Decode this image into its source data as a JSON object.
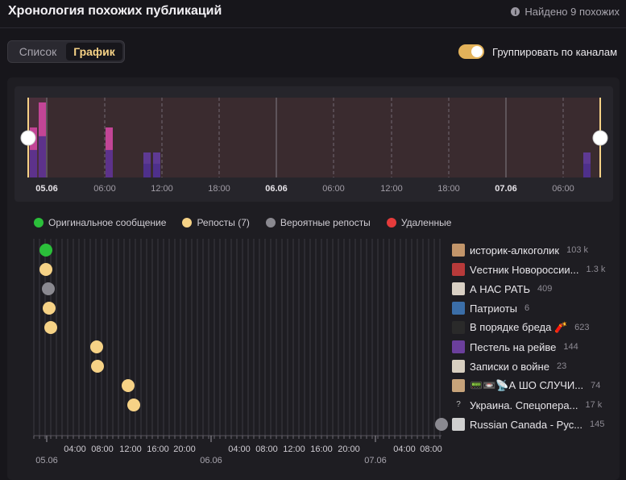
{
  "header": {
    "title": "Хронология похожих публикаций",
    "found": "Найдено 9 похожих"
  },
  "view_toggle": {
    "list_label": "Список",
    "chart_label": "График",
    "active": "chart"
  },
  "group_toggle": {
    "label": "Группировать по каналам",
    "on": true
  },
  "colors": {
    "original": "#2bbf3a",
    "repost": "#f6d286",
    "probable": "#8a8990",
    "deleted": "#e53b3b",
    "accent": "#e3b25a"
  },
  "legend": [
    {
      "label": "Оригинальное сообщение",
      "color": "#2bbf3a"
    },
    {
      "label": "Репосты (7)",
      "color": "#f6d286"
    },
    {
      "label": "Вероятные репосты",
      "color": "#8a8990"
    },
    {
      "label": "Удаленные",
      "color": "#e53b3b"
    }
  ],
  "overview": {
    "tick_labels": [
      "05.06",
      "06:00",
      "12:00",
      "18:00",
      "06.06",
      "06:00",
      "12:00",
      "18:00",
      "07.06",
      "06:00"
    ],
    "bold_ticks": [
      0,
      4,
      8
    ]
  },
  "channels": [
    {
      "name": "историк-алкоголик",
      "count": "103 k",
      "icon": "avatar-drawing-icon",
      "type": "original",
      "color": "#c2956a"
    },
    {
      "name": "Vестник Новороссии...",
      "count": "1.3 k",
      "icon": "flag-icon",
      "type": "repost",
      "color": "#b83a3a"
    },
    {
      "name": "А НАС РАТЬ",
      "count": "409",
      "icon": "avatar-person-icon",
      "type": "probable",
      "color": "#d9d0c4"
    },
    {
      "name": "Патриоты",
      "count": "6",
      "icon": "emblem-icon",
      "type": "repost",
      "color": "#3b6ea8"
    },
    {
      "name": "В порядке бреда 🧨",
      "count": "623",
      "icon": "avatar-dark-icon",
      "type": "repost",
      "color": "#2a2a2a"
    },
    {
      "name": "Пестель на рейве",
      "count": "144",
      "icon": "avatar-purple-icon",
      "type": "repost",
      "color": "#6b3f9c"
    },
    {
      "name": "Записки о войне",
      "count": "23",
      "icon": "avatar-paper-icon",
      "type": "repost",
      "color": "#d8cfc0"
    },
    {
      "name": "📟📼📡А ШО СЛУЧИ...",
      "count": "74",
      "icon": "avatar-cartoon-icon",
      "type": "repost",
      "color": "#c7a37a"
    },
    {
      "name": "Украина. Спецопера...",
      "count": "17 k",
      "icon": "unknown-icon",
      "type": "repost",
      "color": "#1e1d22"
    },
    {
      "name": "Russian Canada - Рус...",
      "count": "145",
      "icon": "avatar-group-icon",
      "type": "probable",
      "color": "#cfcfcf"
    }
  ],
  "timeline_axis": {
    "hour_labels": [
      "04:00",
      "08:00",
      "12:00",
      "16:00",
      "20:00",
      "04:00",
      "08:00",
      "12:00",
      "16:00",
      "20:00",
      "04:00",
      "08:00"
    ],
    "date_labels": [
      "05.06",
      "06.06",
      "07.06"
    ]
  },
  "chart_data": {
    "type": "bar",
    "title": "",
    "x_unit": "hours since 05.06 00:00",
    "xlim": [
      0,
      62
    ],
    "posts": [
      {
        "channel": "историк-алкоголик",
        "time": 0.5,
        "type": "original"
      },
      {
        "channel": "Vестник Новороссии...",
        "time": 0.5,
        "type": "repost"
      },
      {
        "channel": "А НАС РАТЬ",
        "time": 0.7,
        "type": "probable"
      },
      {
        "channel": "Патриоты",
        "time": 0.9,
        "type": "repost"
      },
      {
        "channel": "В порядке бреда 🧨",
        "time": 1.0,
        "type": "repost"
      },
      {
        "channel": "Пестель на рейве",
        "time": 8.8,
        "type": "repost"
      },
      {
        "channel": "Записки о войне",
        "time": 8.9,
        "type": "repost"
      },
      {
        "channel": "📟📼📡А ШО СЛУЧИ...",
        "time": 13.3,
        "type": "repost"
      },
      {
        "channel": "Украина. Спецопера...",
        "time": 14.1,
        "type": "repost"
      },
      {
        "channel": "Russian Canada - Рус...",
        "time": 61.5,
        "type": "probable"
      }
    ],
    "histogram": [
      {
        "time": 0.2,
        "value": 2,
        "color": "pink"
      },
      {
        "time": 1.0,
        "value": 3,
        "color": "pink"
      },
      {
        "time": 6.0,
        "value": 2,
        "color": "pink"
      },
      {
        "time": 10.5,
        "value": 1,
        "color": "purple"
      },
      {
        "time": 11.5,
        "value": 1,
        "color": "purple"
      },
      {
        "time": 60.5,
        "value": 1,
        "color": "purple"
      }
    ]
  }
}
